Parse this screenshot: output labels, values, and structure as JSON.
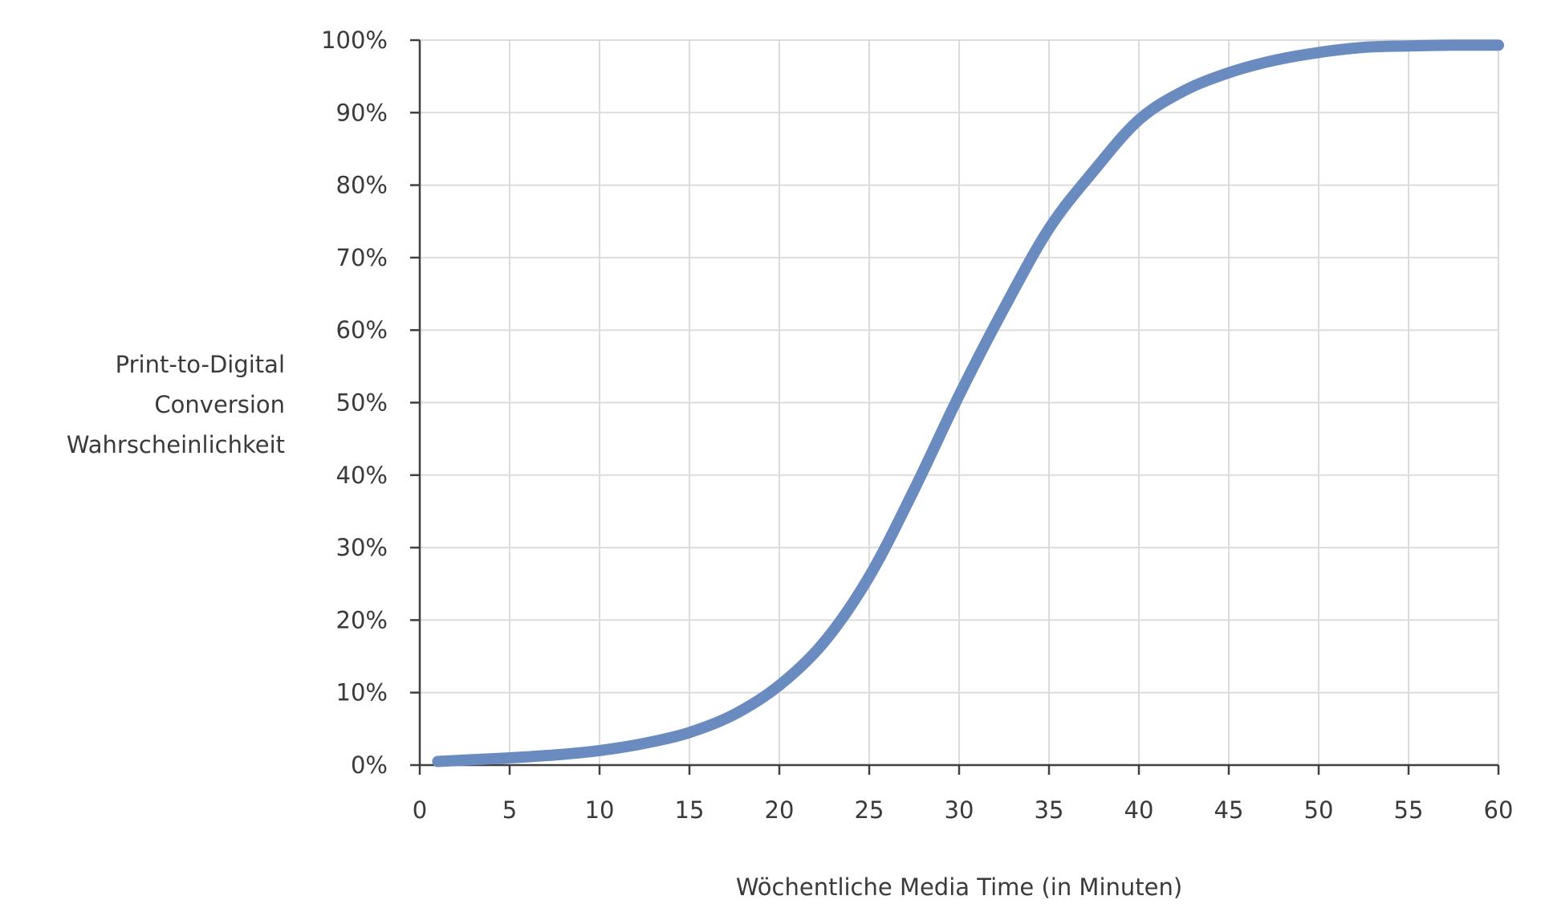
{
  "chart_data": {
    "type": "line",
    "title": "",
    "xlabel": "Wöchentliche Media Time (in Minuten)",
    "ylabel_lines": [
      "Print-to-Digital",
      "Conversion",
      "Wahrscheinlichkeit"
    ],
    "ylabel": "Print-to-Digital Conversion Wahrscheinlichkeit",
    "xlim": [
      0,
      60
    ],
    "ylim": [
      0,
      1
    ],
    "x_ticks": [
      0,
      5,
      10,
      15,
      20,
      25,
      30,
      35,
      40,
      45,
      50,
      55,
      60
    ],
    "x_tick_labels": [
      "0",
      "5",
      "10",
      "15",
      "20",
      "25",
      "30",
      "35",
      "40",
      "45",
      "50",
      "55",
      "60"
    ],
    "y_ticks": [
      0,
      0.1,
      0.2,
      0.3,
      0.4,
      0.5,
      0.6,
      0.7,
      0.8,
      0.9,
      1.0
    ],
    "y_tick_labels": [
      "0%",
      "10%",
      "20%",
      "30%",
      "40%",
      "50%",
      "60%",
      "70%",
      "80%",
      "90%",
      "100%"
    ],
    "grid": true,
    "legend": null,
    "series": [
      {
        "name": "Conversion Wahrscheinlichkeit",
        "color": "#6a8bbf",
        "x": [
          1,
          2.5,
          5,
          7.5,
          10,
          12.5,
          15,
          17.5,
          20,
          22.5,
          25,
          27.5,
          30,
          32.5,
          35,
          37.5,
          40,
          42.5,
          45,
          47.5,
          50,
          52.5,
          55,
          57.5,
          60
        ],
        "values": [
          0.005,
          0.007,
          0.01,
          0.014,
          0.02,
          0.03,
          0.045,
          0.07,
          0.11,
          0.17,
          0.26,
          0.38,
          0.51,
          0.63,
          0.74,
          0.82,
          0.89,
          0.93,
          0.955,
          0.972,
          0.983,
          0.99,
          0.992,
          0.993,
          0.993
        ]
      }
    ]
  },
  "style": {
    "line_color": "#6a8bbf",
    "grid_color": "#dcdcdc",
    "axis_color": "#404040",
    "text_color": "#3a3a3a"
  }
}
